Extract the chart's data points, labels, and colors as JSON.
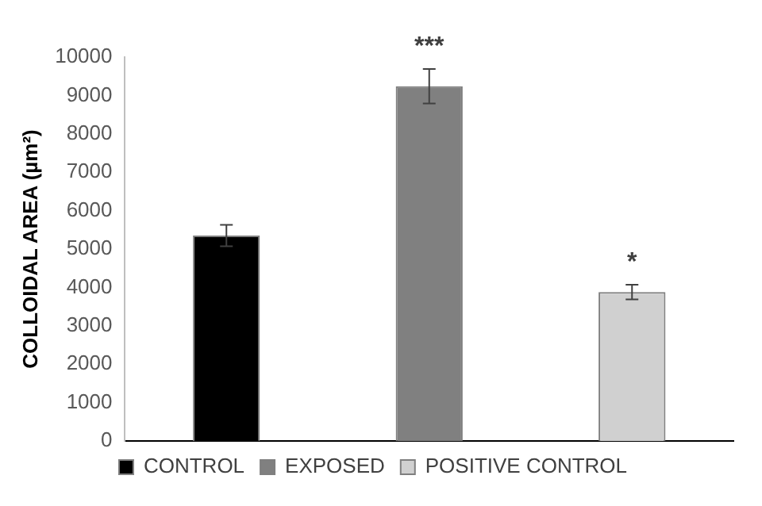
{
  "chart_data": {
    "type": "bar",
    "ylabel": "COLLOIDAL AREA (µm²)",
    "categories": [
      null,
      null,
      null
    ],
    "series": [
      {
        "name": "CONTROL",
        "color": "#000000",
        "values": [
          5350,
          null,
          null
        ],
        "errors": [
          280,
          null,
          null
        ]
      },
      {
        "name": "EXPOSED",
        "color": "#808080",
        "values": [
          null,
          9240,
          null
        ],
        "errors": [
          null,
          450,
          null
        ]
      },
      {
        "name": "POSITIVE CONTROL",
        "color": "#d0d0d0",
        "values": [
          null,
          null,
          3880
        ],
        "errors": [
          null,
          null,
          190
        ]
      }
    ],
    "ylim": [
      0,
      10000
    ],
    "yticks": [
      0,
      1000,
      2000,
      3000,
      4000,
      5000,
      6000,
      7000,
      8000,
      9000,
      10000
    ],
    "annotations": [
      {
        "text": "***",
        "y": 9690
      },
      {
        "text": "*",
        "y": 4070
      }
    ],
    "legend": "bottom",
    "grid": false
  }
}
